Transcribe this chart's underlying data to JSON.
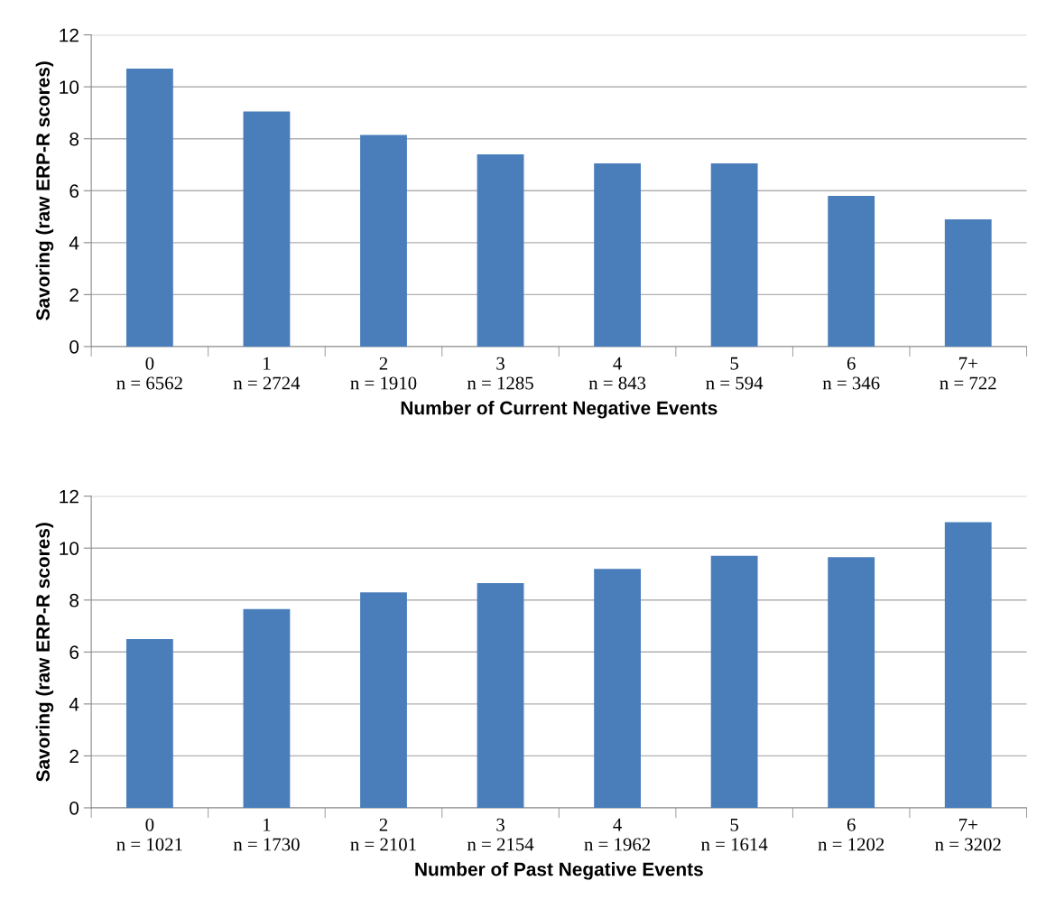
{
  "chart_data": [
    {
      "type": "bar",
      "categories": [
        "0\nn = 6562",
        "1\nn = 2724",
        "2\nn = 1910",
        "3\nn = 1285",
        "4\nn = 843",
        "5\nn = 594",
        "6\nn = 346",
        "7+\nn = 722"
      ],
      "values": [
        10.7,
        9.05,
        8.15,
        7.4,
        7.05,
        7.05,
        5.8,
        4.9
      ],
      "color": "#4a7ebb",
      "xlabel": "Number of Current Negative Events",
      "ylabel": "Savoring (raw ERP-R scores)",
      "ylim": [
        0,
        12
      ],
      "yticks": [
        0,
        2,
        4,
        6,
        8,
        10,
        12
      ],
      "grid": "y",
      "legend": false
    },
    {
      "type": "bar",
      "categories": [
        "0\nn = 1021",
        "1\nn = 1730",
        "2\nn = 2101",
        "3\nn = 2154",
        "4\nn = 1962",
        "5\nn = 1614",
        "6\nn = 1202",
        "7+\nn = 3202"
      ],
      "values": [
        6.5,
        7.65,
        8.3,
        8.65,
        9.2,
        9.7,
        9.65,
        11.0
      ],
      "color": "#4a7ebb",
      "xlabel": "Number of Past Negative Events",
      "ylabel": "Savoring (raw ERP-R scores)",
      "ylim": [
        0,
        12
      ],
      "yticks": [
        0,
        2,
        4,
        6,
        8,
        10,
        12
      ],
      "grid": "y",
      "legend": false
    }
  ]
}
